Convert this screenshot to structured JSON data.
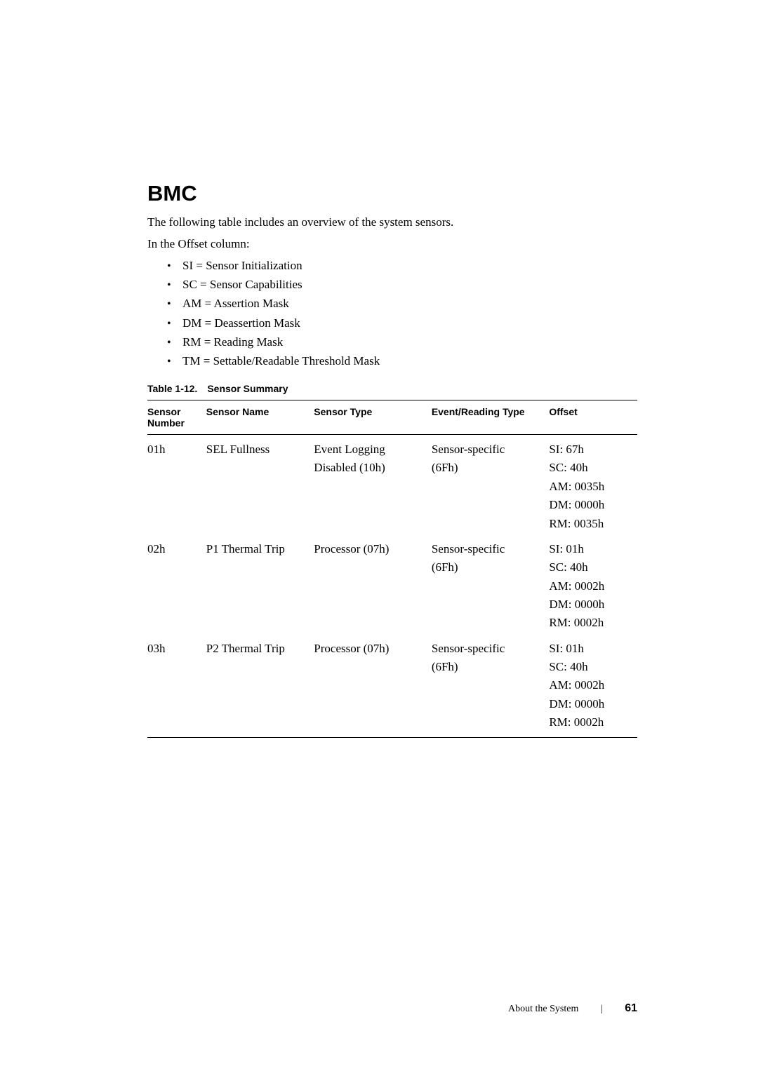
{
  "heading": "BMC",
  "intro_line_1": "The following table includes an overview of the system sensors.",
  "intro_line_2": "In the Offset column:",
  "bullets": [
    "SI = Sensor Initialization",
    "SC = Sensor Capabilities",
    "AM = Assertion Mask",
    "DM = Deassertion Mask",
    "RM = Reading Mask",
    "TM = Settable/Readable Threshold Mask"
  ],
  "table_caption": "Table 1-12. Sensor Summary",
  "table_headers": {
    "number": "Sensor Number",
    "name": "Sensor Name",
    "type": "Sensor Type",
    "event": "Event/Reading Type",
    "offset": "Offset"
  },
  "rows": [
    {
      "number": "01h",
      "name": "SEL Fullness",
      "type_line1": "Event Logging",
      "type_line2": "Disabled (10h)",
      "event_line1": "Sensor-specific",
      "event_line2": "(6Fh)",
      "offsets": [
        "SI: 67h",
        "SC: 40h",
        "AM: 0035h",
        "DM: 0000h",
        "RM: 0035h"
      ]
    },
    {
      "number": "02h",
      "name": "P1 Thermal Trip",
      "type_line1": "Processor (07h)",
      "type_line2": "",
      "event_line1": "Sensor-specific",
      "event_line2": "(6Fh)",
      "offsets": [
        "SI: 01h",
        "SC: 40h",
        "AM: 0002h",
        "DM: 0000h",
        "RM: 0002h"
      ]
    },
    {
      "number": "03h",
      "name": "P2 Thermal Trip",
      "type_line1": "Processor (07h)",
      "type_line2": "",
      "event_line1": "Sensor-specific",
      "event_line2": "(6Fh)",
      "offsets": [
        "SI: 01h",
        "SC: 40h",
        "AM: 0002h",
        "DM: 0000h",
        "RM: 0002h"
      ]
    }
  ],
  "footer": {
    "label": "About the System",
    "page": "61"
  }
}
